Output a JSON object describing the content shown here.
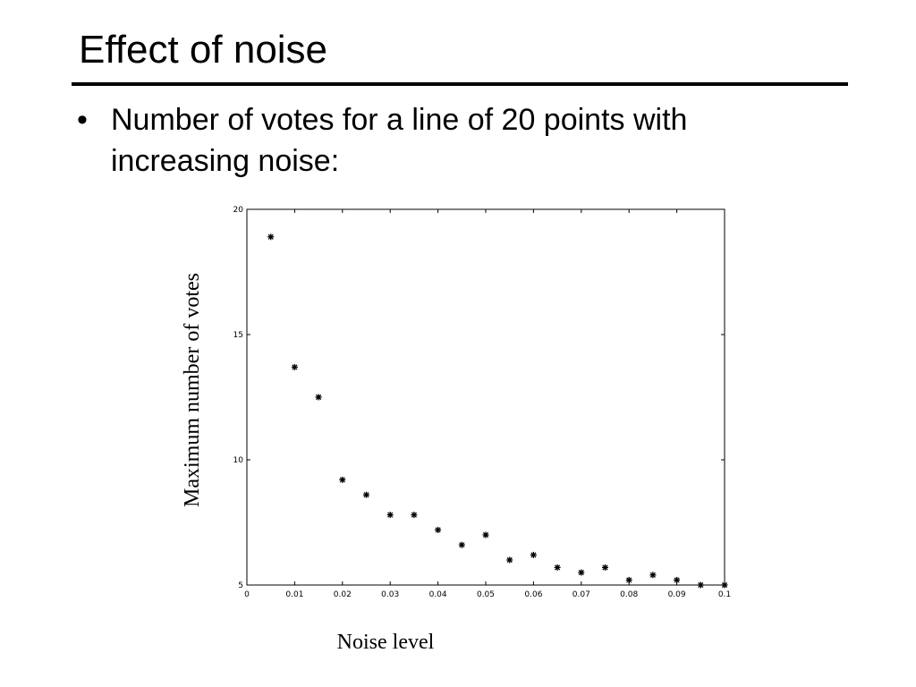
{
  "slide": {
    "title": "Effect of noise",
    "bullet_marker": "•",
    "bullet_text": "Number of votes for a line of 20 points with increasing noise:"
  },
  "chart_data": {
    "type": "scatter",
    "marker": "*",
    "xlabel": "Noise level",
    "ylabel": "Maximum number of votes",
    "xlim": [
      0,
      0.1
    ],
    "ylim": [
      5,
      20
    ],
    "xticks": [
      0,
      0.01,
      0.02,
      0.03,
      0.04,
      0.05,
      0.06,
      0.07,
      0.08,
      0.09,
      0.1
    ],
    "xtick_labels": [
      "0",
      "0.01",
      "0.02",
      "0.03",
      "0.04",
      "0.05",
      "0.06",
      "0.07",
      "0.08",
      "0.09",
      "0.1"
    ],
    "yticks": [
      5,
      10,
      15,
      20
    ],
    "ytick_labels": [
      "5",
      "10",
      "15",
      "20"
    ],
    "grid": false,
    "series": [
      {
        "x": [
          0.005,
          0.01,
          0.015,
          0.02,
          0.025,
          0.03,
          0.035,
          0.04,
          0.045,
          0.05,
          0.055,
          0.06,
          0.065,
          0.07,
          0.075,
          0.08,
          0.085,
          0.09,
          0.095,
          0.1
        ],
        "values": [
          18.9,
          13.7,
          12.5,
          9.2,
          8.6,
          7.8,
          7.8,
          7.2,
          6.6,
          7.0,
          6.0,
          6.2,
          5.7,
          5.5,
          5.7,
          5.2,
          5.4,
          5.2,
          5.0,
          5.0
        ]
      }
    ]
  }
}
